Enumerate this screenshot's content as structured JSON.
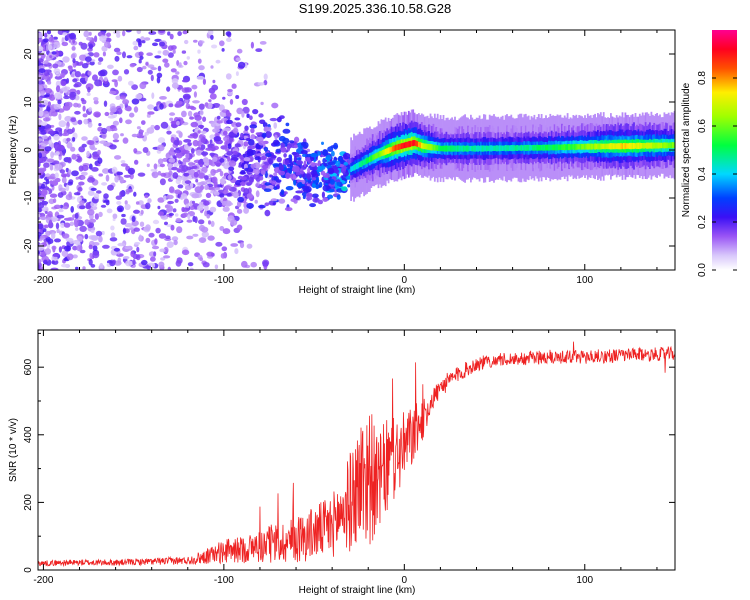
{
  "title": "S199.2025.336.10.58.G28",
  "chart_data": [
    {
      "type": "heatmap",
      "title": "S199.2025.336.10.58.G28",
      "xlabel": "Height of straight line (km)",
      "ylabel": "Frequency (Hz)",
      "xlim": [
        -203,
        150
      ],
      "ylim": [
        -25,
        25
      ],
      "x_ticks": [
        -200,
        -100,
        0,
        100
      ],
      "x_tick_labels": [
        "-200",
        "-100",
        "0",
        "100"
      ],
      "y_ticks": [
        -20,
        -10,
        0,
        10,
        20
      ],
      "y_tick_labels": [
        "-20",
        "-10",
        "0",
        "10",
        "20"
      ],
      "colorbar": {
        "label": "Normalized spectral amplitude",
        "range": [
          0,
          1
        ],
        "ticks": [
          0,
          0.2,
          0.4,
          0.6,
          0.8
        ],
        "tick_labels": [
          "0.0",
          "0.2",
          "0.4",
          "0.6",
          "0.8"
        ],
        "colors": [
          "#ffffff",
          "#c8b0f8",
          "#7a1ff0",
          "#0000ff",
          "#00ffff",
          "#00ff00",
          "#ffff00",
          "#ff0000",
          "#ff00a0"
        ]
      },
      "ridge": {
        "x": [
          -110,
          -90,
          -70,
          -50,
          -35,
          -25,
          -15,
          -5,
          0,
          5,
          10,
          20,
          40,
          60,
          80,
          100,
          120,
          150
        ],
        "frequency": [
          -1,
          -2,
          -3,
          -4.5,
          -5,
          -3,
          -1,
          0.5,
          1,
          1.5,
          0.8,
          0.3,
          0.3,
          0.4,
          0.5,
          0.7,
          0.8,
          1.0
        ],
        "amplitude": [
          0.15,
          0.2,
          0.25,
          0.3,
          0.35,
          0.45,
          0.6,
          0.85,
          0.9,
          0.9,
          0.7,
          0.5,
          0.45,
          0.45,
          0.5,
          0.6,
          0.75,
          0.6
        ]
      }
    },
    {
      "type": "line",
      "xlabel": "Height of straight line (km)",
      "ylabel": "SNR (10 * v/v)",
      "xlim": [
        -203,
        150
      ],
      "ylim": [
        0,
        710
      ],
      "x_ticks": [
        -200,
        -100,
        0,
        100
      ],
      "x_tick_labels": [
        "-200",
        "-100",
        "0",
        "100"
      ],
      "y_ticks": [
        0,
        200,
        400,
        600
      ],
      "y_tick_labels": [
        "0",
        "200",
        "400",
        "600"
      ],
      "color": "#ee2222",
      "series": [
        {
          "name": "SNR",
          "x": [
            -203,
            -180,
            -160,
            -140,
            -120,
            -110,
            -100,
            -90,
            -80,
            -70,
            -60,
            -50,
            -40,
            -35,
            -30,
            -25,
            -20,
            -15,
            -10,
            -5,
            0,
            5,
            10,
            15,
            20,
            30,
            40,
            50,
            60,
            80,
            100,
            120,
            150
          ],
          "mean": [
            20,
            22,
            22,
            25,
            28,
            40,
            55,
            60,
            70,
            80,
            90,
            110,
            130,
            170,
            200,
            260,
            290,
            250,
            300,
            330,
            360,
            400,
            440,
            500,
            540,
            580,
            610,
            620,
            625,
            630,
            630,
            635,
            640
          ],
          "noise": [
            8,
            9,
            9,
            10,
            12,
            22,
            35,
            40,
            50,
            60,
            70,
            80,
            95,
            110,
            150,
            180,
            230,
            140,
            150,
            120,
            110,
            90,
            60,
            35,
            30,
            25,
            22,
            20,
            20,
            22,
            22,
            20,
            20
          ]
        }
      ]
    }
  ]
}
